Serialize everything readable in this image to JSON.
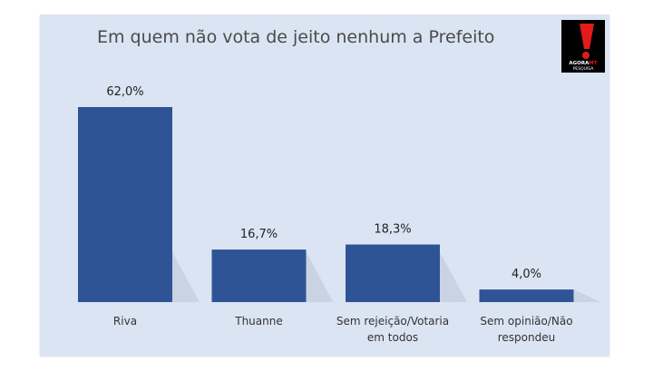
{
  "logo": {
    "text": "AGORA",
    "text_accent": "MT",
    "sub": "PESQUISA"
  },
  "chart_data": {
    "type": "bar",
    "title": "Em quem não vota de jeito nenhum a Prefeito",
    "categories": [
      "Riva",
      "Thuanne",
      "Sem rejeição/Votaria em todos",
      "Sem opinião/Não respondeu"
    ],
    "category_lines": [
      [
        "Riva"
      ],
      [
        "Thuanne"
      ],
      [
        "Sem rejeição/Votaria",
        "em todos"
      ],
      [
        "Sem opinião/Não",
        "respondeu"
      ]
    ],
    "values": [
      62.0,
      16.7,
      18.3,
      4.0
    ],
    "value_labels": [
      "62,0%",
      "16,7%",
      "18,3%",
      "4,0%"
    ],
    "ylim": [
      0,
      62.0
    ],
    "xlabel": "",
    "ylabel": "",
    "grid": false,
    "bar_color": "#2f5496"
  }
}
